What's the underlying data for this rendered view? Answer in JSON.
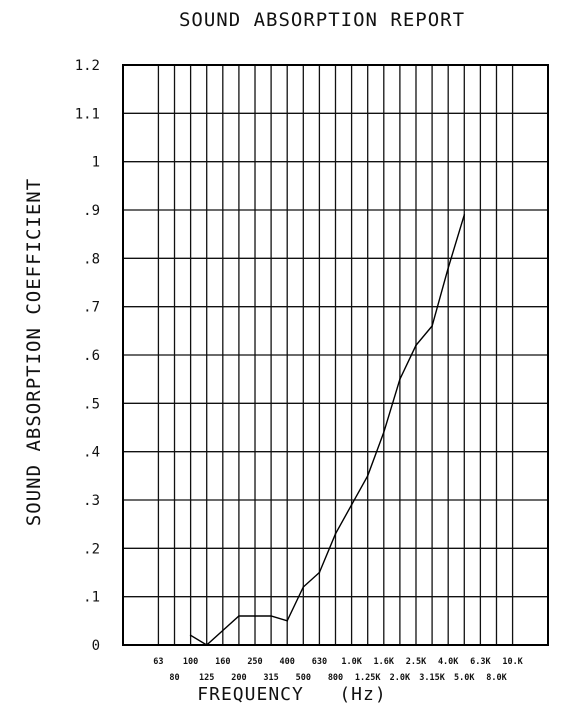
{
  "chart_data": {
    "type": "line",
    "title": "SOUND ABSORPTION REPORT",
    "xlabel": "FREQUENCY   (Hz)",
    "ylabel": "SOUND ABSORPTION COEFFICIENT",
    "ylim": [
      0,
      1.2
    ],
    "y_tick_labels": [
      "0",
      ".1",
      ".2",
      ".3",
      ".4",
      ".5",
      ".6",
      ".7",
      ".8",
      ".9",
      "1",
      "1.1",
      "1.2"
    ],
    "x_tick_labels": [
      "63",
      "80",
      "100",
      "125",
      "160",
      "200",
      "250",
      "315",
      "400",
      "500",
      "630",
      "800",
      "1.0K",
      "1.25K",
      "1.6K",
      "2.0K",
      "2.5K",
      "3.15K",
      "4.0K",
      "5.0K",
      "6.3K",
      "8.0K",
      "10.K"
    ],
    "grid": true,
    "series": [
      {
        "x": [
          "100",
          "125",
          "160",
          "200",
          "250",
          "315",
          "400",
          "500",
          "630",
          "800",
          "1.0K",
          "1.25K",
          "1.6K",
          "2.0K",
          "2.5K",
          "3.15K",
          "4.0K",
          "5.0K"
        ],
        "values": [
          0.02,
          0.0,
          0.03,
          0.06,
          0.06,
          0.06,
          0.05,
          0.12,
          0.15,
          0.23,
          0.29,
          0.35,
          0.44,
          0.55,
          0.62,
          0.66,
          0.78,
          0.89
        ]
      }
    ]
  }
}
